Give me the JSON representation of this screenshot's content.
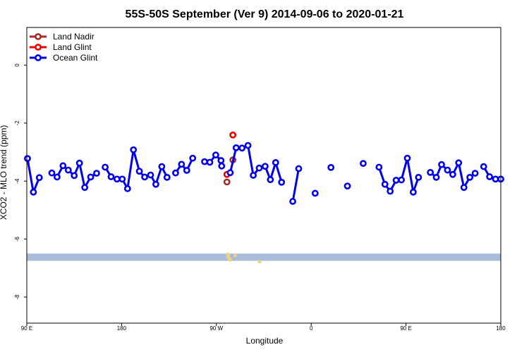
{
  "chart_data": {
    "type": "line",
    "title": "55S-50S September (Ver 9)   2014-09-06 to 2020-01-21",
    "xlabel": "Longitude",
    "ylabel": "XCO2 - MLO trend (ppm)",
    "xlim": [
      90,
      450
    ],
    "ylim": [
      -8.9,
      1.3
    ],
    "x_ticks": [
      {
        "value": 90,
        "label": "90 E"
      },
      {
        "value": 162,
        "label": "180"
      },
      {
        "value": 234,
        "label": "90 W"
      },
      {
        "value": 306,
        "label": "0"
      },
      {
        "value": 378,
        "label": "90 E"
      },
      {
        "value": 450,
        "label": "180"
      }
    ],
    "y_ticks": [
      {
        "value": 0,
        "label": "0"
      },
      {
        "value": -2,
        "label": "-2"
      },
      {
        "value": -4,
        "label": "-4"
      },
      {
        "value": -6,
        "label": "-6"
      },
      {
        "value": -8,
        "label": "-8"
      }
    ],
    "legend_position": "top-left",
    "grid": false,
    "series": [
      {
        "name": "Land Nadir",
        "color": "#a52a2a",
        "segments": [
          [
            [
              242,
              -4.03
            ]
          ],
          [
            [
              246.5,
              -3.27
            ]
          ]
        ]
      },
      {
        "name": "Land Glint",
        "color": "#ee0000",
        "segments": [
          [
            [
              242,
              -3.77
            ]
          ],
          [
            [
              246.5,
              -2.41
            ]
          ]
        ]
      },
      {
        "name": "Ocean Glint",
        "color": "#0000ee",
        "segments": [
          [
            [
              90.5,
              -3.22
            ],
            [
              95,
              -4.38
            ],
            [
              99.5,
              -3.88
            ]
          ],
          [
            [
              109,
              -3.72
            ],
            [
              113,
              -3.86
            ],
            [
              117.5,
              -3.47
            ],
            [
              121.5,
              -3.62
            ],
            [
              126,
              -3.81
            ],
            [
              130,
              -3.38
            ],
            [
              134,
              -4.22
            ],
            [
              138.5,
              -3.86
            ],
            [
              143,
              -3.73
            ]
          ],
          [
            [
              149.5,
              -3.52
            ],
            [
              154,
              -3.85
            ],
            [
              158.5,
              -3.93
            ],
            [
              162.5,
              -3.93
            ],
            [
              166.5,
              -4.26
            ],
            [
              171,
              -2.92
            ],
            [
              175.5,
              -3.66
            ],
            [
              179.5,
              -3.86
            ],
            [
              184,
              -3.79
            ],
            [
              188,
              -4.11
            ],
            [
              192.5,
              -3.5
            ],
            [
              196.5,
              -3.87
            ]
          ],
          [
            [
              203,
              -3.72
            ],
            [
              207.5,
              -3.42
            ],
            [
              211.5,
              -3.63
            ],
            [
              216,
              -3.21
            ]
          ],
          [
            [
              225,
              -3.33
            ],
            [
              229,
              -3.35
            ],
            [
              233.5,
              -3.1
            ],
            [
              237.5,
              -3.29
            ]
          ],
          [
            [
              238,
              -3.48
            ]
          ],
          [
            [
              244.5,
              -3.71
            ],
            [
              249,
              -2.85
            ],
            [
              253.5,
              -2.86
            ],
            [
              258,
              -2.77
            ],
            [
              262,
              -3.8
            ],
            [
              266.5,
              -3.55
            ],
            [
              271,
              -3.49
            ],
            [
              275,
              -3.95
            ],
            [
              279,
              -3.36
            ],
            [
              283.5,
              -4.04
            ]
          ],
          [
            [
              292,
              -4.7
            ],
            [
              296.5,
              -3.57
            ]
          ],
          [
            [
              309,
              -4.42
            ]
          ],
          [
            [
              321,
              -3.53
            ]
          ],
          [
            [
              333.5,
              -4.17
            ]
          ],
          [
            [
              345.5,
              -3.39
            ]
          ],
          [
            [
              357.5,
              -3.52
            ],
            [
              362,
              -4.11
            ],
            [
              366,
              -4.35
            ],
            [
              370.5,
              -3.97
            ],
            [
              374.5,
              -3.96
            ],
            [
              379,
              -3.21
            ],
            [
              383.5,
              -4.38
            ],
            [
              387.5,
              -3.87
            ]
          ],
          [
            [
              396.5,
              -3.7
            ],
            [
              401,
              -3.87
            ],
            [
              405,
              -3.43
            ],
            [
              409.5,
              -3.62
            ],
            [
              413.5,
              -3.77
            ],
            [
              418,
              -3.37
            ],
            [
              422,
              -4.22
            ],
            [
              426.5,
              -3.87
            ],
            [
              430.5,
              -3.73
            ]
          ],
          [
            [
              437,
              -3.5
            ],
            [
              441.5,
              -3.85
            ],
            [
              446,
              -3.93
            ],
            [
              450,
              -3.93
            ]
          ]
        ]
      }
    ],
    "band": {
      "y_low": -6.75,
      "y_high": -6.5,
      "color": "#a7bcd9"
    },
    "land_marks": [
      {
        "x": 242.6,
        "y": -6.53,
        "color": "#f2d17a"
      },
      {
        "x": 243.1,
        "y": -6.57,
        "color": "#f2d17a"
      },
      {
        "x": 242.9,
        "y": -6.62,
        "color": "#f2d17a"
      },
      {
        "x": 243.6,
        "y": -6.66,
        "color": "#f2d17a"
      },
      {
        "x": 244.4,
        "y": -6.72,
        "color": "#f2d17a"
      },
      {
        "x": 248.3,
        "y": -6.57,
        "color": "#f2d17a"
      },
      {
        "x": 266.8,
        "y": -6.78,
        "color": "#f2d17a"
      }
    ]
  }
}
